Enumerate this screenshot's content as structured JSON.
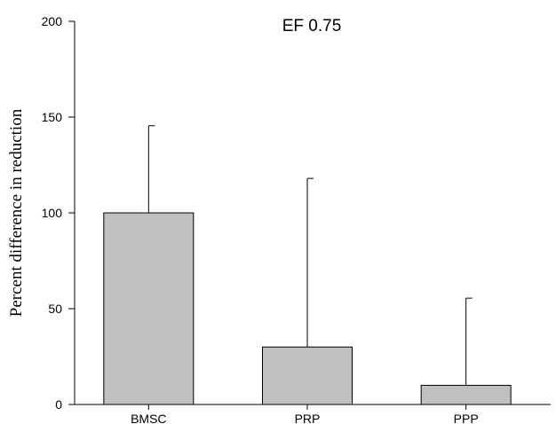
{
  "chart_data": {
    "type": "bar",
    "title": "EF 0.75",
    "xlabel": "",
    "ylabel": "Percent difference in reduction",
    "categories": [
      "BMSC",
      "PRP",
      "PPP"
    ],
    "series": [
      {
        "values": [
          100,
          30,
          10
        ],
        "error_upper": [
          45.5,
          88,
          45.5
        ]
      }
    ],
    "ylim": [
      0,
      200
    ],
    "yticks": [
      0,
      50,
      100,
      150,
      200
    ],
    "grid": false,
    "bar_color": "#c0c0c0",
    "edge_color": "#000000"
  }
}
